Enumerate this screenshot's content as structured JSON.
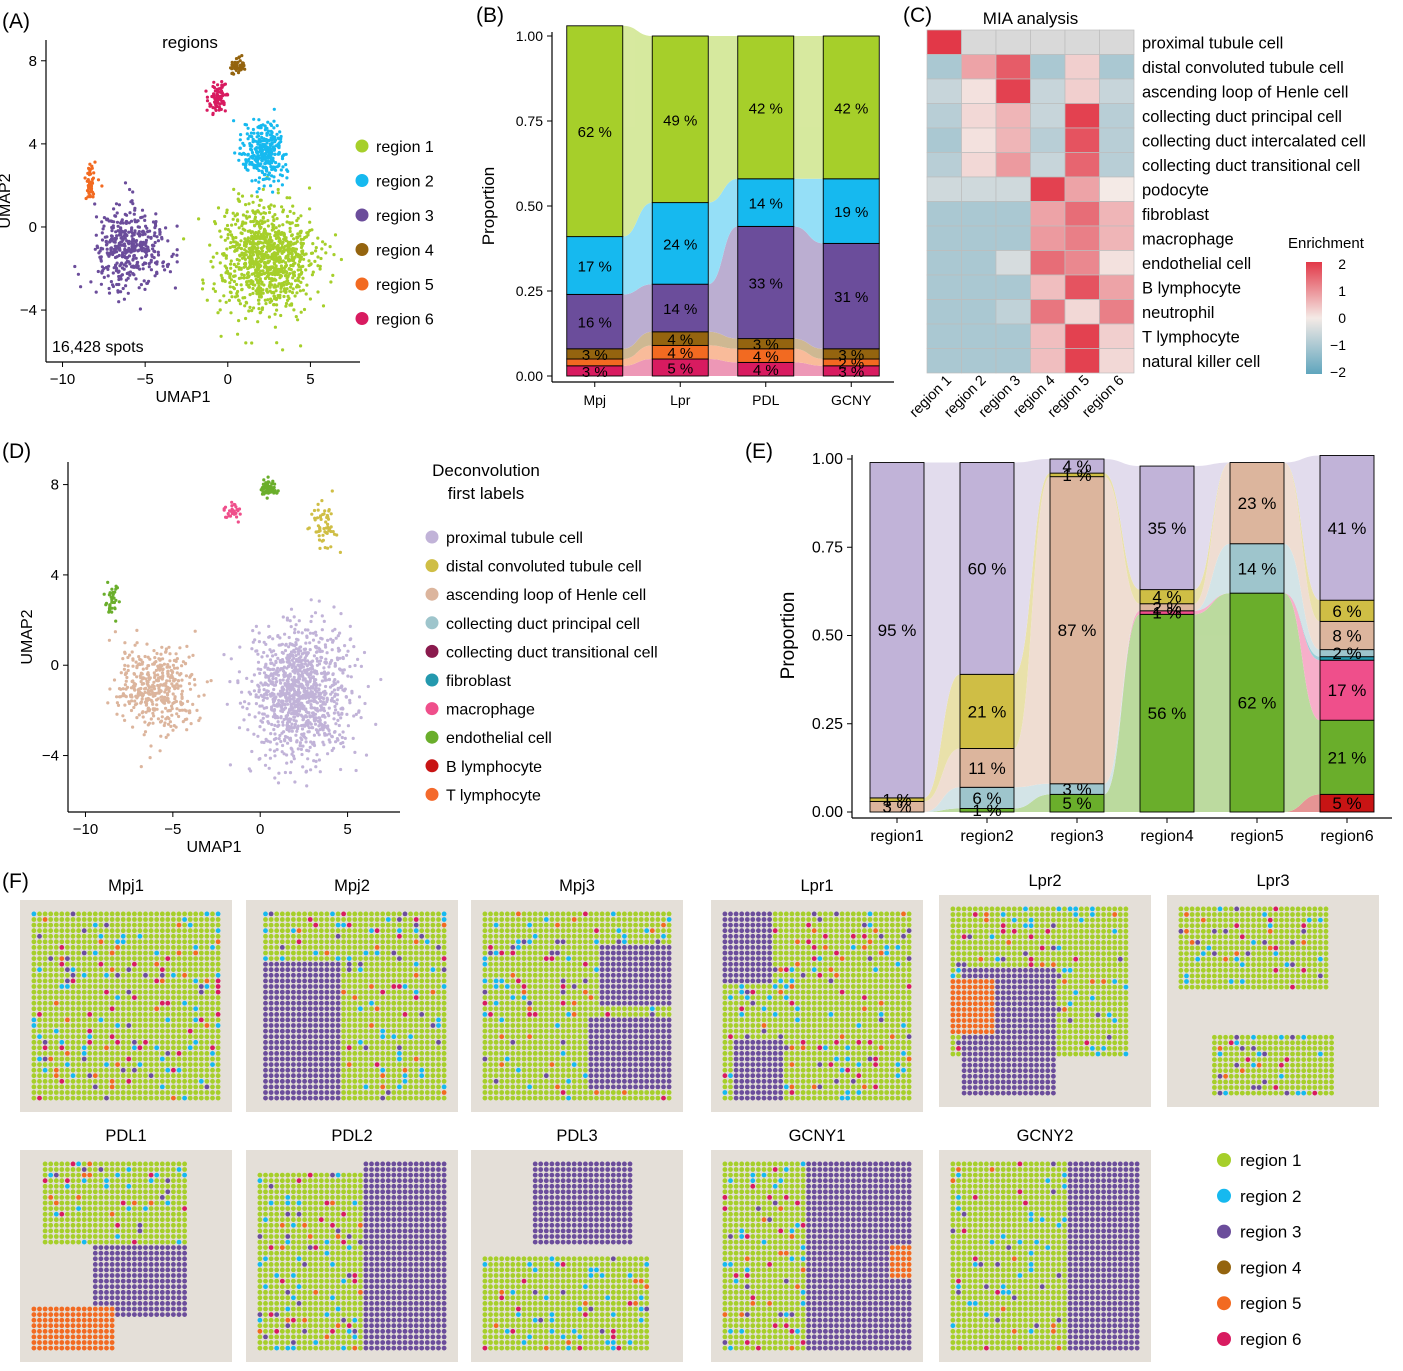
{
  "colors": {
    "region1": "#a6cf2a",
    "region2": "#16b9ef",
    "region3": "#6b4d9b",
    "region4": "#94640f",
    "region5": "#f26a21",
    "region6": "#d81b60",
    "proximal": "#c1b3d8",
    "distal": "#cfbe45",
    "loop": "#dcb59d",
    "cdprincipal": "#9ec5cc",
    "cdtransitional": "#8a1a4d",
    "fibroblast": "#2499ae",
    "macrophage": "#ef4f8b",
    "endothelial": "#6aae2b",
    "blymph": "#c81414",
    "tlymph": "#f46a2c",
    "tissue": "#e4dfd8"
  },
  "panel_labels": [
    "(A)",
    "(B)",
    "(C)",
    "(D)",
    "(E)",
    "(F)"
  ],
  "chart_data": [
    {
      "panel": "A",
      "type": "scatter",
      "title": "regions",
      "xlabel": "UMAP1",
      "ylabel": "UMAP2",
      "xlim": [
        -11,
        8
      ],
      "ylim": [
        -6.5,
        9
      ],
      "xticks": [
        -10,
        -5,
        0,
        5
      ],
      "yticks": [
        -4,
        0,
        4,
        8
      ],
      "annotation": "16,428 spots",
      "legend": [
        "region 1",
        "region 2",
        "region 3",
        "region 4",
        "region 5",
        "region 6"
      ],
      "clusters": [
        {
          "name": "region 1",
          "color": "region1",
          "cx": 2.3,
          "cy": -1.5,
          "sx": 2.6,
          "sy": 2.4,
          "n": 950
        },
        {
          "name": "region 2",
          "color": "region2",
          "cx": 2.2,
          "cy": 3.6,
          "sx": 1.2,
          "sy": 1.2,
          "n": 320
        },
        {
          "name": "region 3",
          "color": "region3",
          "cx": -6.0,
          "cy": -1.0,
          "sx": 2.0,
          "sy": 1.7,
          "n": 420
        },
        {
          "name": "region 4",
          "color": "region4",
          "cx": 0.6,
          "cy": 7.7,
          "sx": 0.35,
          "sy": 0.3,
          "n": 45
        },
        {
          "name": "region 5",
          "color": "region5",
          "cx": -8.3,
          "cy": 2.2,
          "sx": 0.35,
          "sy": 0.7,
          "n": 45
        },
        {
          "name": "region 6",
          "color": "region6",
          "cx": -0.6,
          "cy": 6.2,
          "sx": 0.55,
          "sy": 0.55,
          "n": 80
        }
      ]
    },
    {
      "panel": "B",
      "type": "bar",
      "ylabel": "Proportion",
      "categories": [
        "Mpj",
        "Lpr",
        "PDL",
        "GCNY"
      ],
      "yticks": [
        "0.00",
        "0.25",
        "0.50",
        "0.75",
        "1.00"
      ],
      "series": [
        {
          "name": "region 6",
          "color": "region6",
          "values": [
            0.03,
            0.05,
            0.04,
            0.03
          ],
          "labels": [
            "3 %",
            "5 %",
            "4 %",
            "3 %"
          ]
        },
        {
          "name": "region 5",
          "color": "region5",
          "values": [
            0.02,
            0.04,
            0.04,
            0.02
          ],
          "labels": [
            "",
            "4 %",
            "4 %",
            "2 %"
          ]
        },
        {
          "name": "region 4",
          "color": "region4",
          "values": [
            0.03,
            0.04,
            0.03,
            0.03
          ],
          "labels": [
            "3 %",
            "4 %",
            "3 %",
            "3 %"
          ]
        },
        {
          "name": "region 3",
          "color": "region3",
          "values": [
            0.16,
            0.14,
            0.33,
            0.31
          ],
          "labels": [
            "16 %",
            "14 %",
            "33 %",
            "31 %"
          ]
        },
        {
          "name": "region 2",
          "color": "region2",
          "values": [
            0.17,
            0.24,
            0.14,
            0.19
          ],
          "labels": [
            "17 %",
            "24 %",
            "14 %",
            "19 %"
          ]
        },
        {
          "name": "region 1",
          "color": "region1",
          "values": [
            0.62,
            0.49,
            0.42,
            0.42
          ],
          "labels": [
            "62 %",
            "49 %",
            "42 %",
            "42 %"
          ]
        }
      ]
    },
    {
      "panel": "C",
      "type": "heatmap",
      "title": "MIA analysis",
      "legend_title": "Enrichment",
      "legend_ticks": [
        "2",
        "1",
        "0",
        "−1",
        "−2"
      ],
      "columns": [
        "region 1",
        "region 2",
        "region 3",
        "region 4",
        "region 5",
        "region 6"
      ],
      "rows": [
        "proximal tubule cell",
        "distal convoluted tubule cell",
        "ascending loop of Henle cell",
        "collecting duct principal cell",
        "collecting duct intercalated cell",
        "collecting duct transitional cell",
        "podocyte",
        "fibroblast",
        "macrophage",
        "endothelial cell",
        "B lymphocyte",
        "neutrophil",
        "T lymphocyte",
        "natural killer cell"
      ],
      "values": [
        [
          2.0,
          0.0,
          0.0,
          0.0,
          0.0,
          0.0
        ],
        [
          -1.0,
          0.8,
          1.6,
          -1.0,
          0.3,
          -1.0
        ],
        [
          -0.6,
          0.1,
          1.9,
          -0.6,
          0.3,
          -0.6
        ],
        [
          -0.8,
          0.2,
          0.6,
          -0.6,
          1.9,
          -0.8
        ],
        [
          -1.0,
          0.1,
          0.6,
          -0.8,
          1.7,
          -0.8
        ],
        [
          -0.8,
          0.2,
          0.9,
          -0.6,
          1.5,
          -0.8
        ],
        [
          -0.5,
          -0.5,
          -0.5,
          1.9,
          0.8,
          0.0
        ],
        [
          -1.0,
          -1.0,
          -1.0,
          0.8,
          1.4,
          0.6
        ],
        [
          -1.0,
          -1.0,
          -1.0,
          0.9,
          1.2,
          0.6
        ],
        [
          -1.0,
          -1.0,
          -0.4,
          1.4,
          1.1,
          0.1
        ],
        [
          -1.0,
          -1.0,
          -1.0,
          0.5,
          1.7,
          0.8
        ],
        [
          -1.0,
          -1.0,
          -0.7,
          1.3,
          0.2,
          1.2
        ],
        [
          -1.0,
          -1.0,
          -1.0,
          0.5,
          1.9,
          0.3
        ],
        [
          -1.0,
          -1.0,
          -1.0,
          0.5,
          1.9,
          0.2
        ]
      ]
    },
    {
      "panel": "D",
      "type": "scatter",
      "title": "Deconvolution\nfirst labels",
      "xlabel": "UMAP1",
      "ylabel": "UMAP2",
      "xlim": [
        -11,
        8
      ],
      "ylim": [
        -6.5,
        9
      ],
      "xticks": [
        -10,
        -5,
        0,
        5
      ],
      "yticks": [
        -4,
        0,
        4,
        8
      ],
      "legend": [
        "proximal tubule cell",
        "distal convoluted tubule cell",
        "ascending loop of Henle cell",
        "collecting duct principal cell",
        "collecting duct transitional cell",
        "fibroblast",
        "macrophage",
        "endothelial cell",
        "B lymphocyte",
        "T lymphocyte"
      ],
      "legend_colors": [
        "proximal",
        "distal",
        "loop",
        "cdprincipal",
        "cdtransitional",
        "fibroblast",
        "macrophage",
        "endothelial",
        "blymph",
        "tlymph"
      ],
      "clusters": [
        {
          "name": "proximal tubule cell",
          "color": "proximal",
          "cx": 2.3,
          "cy": -1.2,
          "sx": 2.6,
          "sy": 2.6,
          "n": 1100
        },
        {
          "name": "ascending loop of Henle cell",
          "color": "loop",
          "cx": -6.0,
          "cy": -1.0,
          "sx": 2.0,
          "sy": 1.7,
          "n": 420
        },
        {
          "name": "distal convoluted tubule cell",
          "color": "distal",
          "cx": 3.6,
          "cy": 6.2,
          "sx": 0.6,
          "sy": 0.9,
          "n": 60
        },
        {
          "name": "endothelial cell",
          "color": "endothelial",
          "cx": 0.5,
          "cy": 7.8,
          "sx": 0.4,
          "sy": 0.35,
          "n": 60
        },
        {
          "name": "endothelial cell",
          "color": "endothelial",
          "cx": -8.5,
          "cy": 2.8,
          "sx": 0.35,
          "sy": 0.6,
          "n": 40
        },
        {
          "name": "macrophage",
          "color": "macrophage",
          "cx": -1.6,
          "cy": 6.8,
          "sx": 0.5,
          "sy": 0.4,
          "n": 30
        }
      ]
    },
    {
      "panel": "E",
      "type": "bar",
      "ylabel": "Proportion",
      "categories": [
        "region1",
        "region2",
        "region3",
        "region4",
        "region5",
        "region6"
      ],
      "yticks": [
        "0.00",
        "0.25",
        "0.50",
        "0.75",
        "1.00"
      ],
      "series": [
        {
          "name": "B lymphocyte",
          "color": "blymph",
          "values": [
            0.0,
            0.0,
            0.0,
            0.0,
            0.0,
            0.05
          ],
          "labels": [
            "",
            "",
            "",
            "",
            "",
            "5 %"
          ]
        },
        {
          "name": "endothelial cell",
          "color": "endothelial",
          "values": [
            0.0,
            0.01,
            0.05,
            0.56,
            0.62,
            0.21
          ],
          "labels": [
            "",
            "1 %",
            "5 %",
            "56 %",
            "62 %",
            "21 %"
          ]
        },
        {
          "name": "macrophage",
          "color": "macrophage",
          "values": [
            0.0,
            0.0,
            0.0,
            0.01,
            0.0,
            0.17
          ],
          "labels": [
            "",
            "",
            "",
            "1 %",
            "",
            "17 %"
          ]
        },
        {
          "name": "fibroblast",
          "color": "fibroblast",
          "values": [
            0.0,
            0.0,
            0.0,
            0.0,
            0.0,
            0.01
          ],
          "labels": [
            "",
            "",
            "",
            "",
            "",
            ""
          ]
        },
        {
          "name": "collecting duct principal cell",
          "color": "cdprincipal",
          "values": [
            0.0,
            0.06,
            0.03,
            0.0,
            0.14,
            0.02
          ],
          "labels": [
            "",
            "6 %",
            "3 %",
            "",
            "14 %",
            "2 %"
          ]
        },
        {
          "name": "ascending loop of Henle cell",
          "color": "loop",
          "values": [
            0.03,
            0.11,
            0.87,
            0.02,
            0.23,
            0.08
          ],
          "labels": [
            "3 %",
            "11 %",
            "87 %",
            "2 %",
            "23 %",
            "8 %"
          ]
        },
        {
          "name": "distal convoluted tubule cell",
          "color": "distal",
          "values": [
            0.01,
            0.21,
            0.01,
            0.04,
            0.0,
            0.06
          ],
          "labels": [
            "1 %",
            "21 %",
            "1 %",
            "4 %",
            "",
            "6 %"
          ]
        },
        {
          "name": "proximal tubule cell",
          "color": "proximal",
          "values": [
            0.95,
            0.6,
            0.04,
            0.35,
            0.0,
            0.41
          ],
          "labels": [
            "95 %",
            "60 %",
            "4 %",
            "35 %",
            "",
            "41 %"
          ]
        }
      ]
    },
    {
      "panel": "F",
      "type": "scatter",
      "samples": [
        "Mpj1",
        "Mpj2",
        "Mpj3",
        "Lpr1",
        "Lpr2",
        "Lpr3",
        "PDL1",
        "PDL2",
        "PDL3",
        "GCNY1",
        "GCNY2"
      ],
      "legend": [
        "region 1",
        "region 2",
        "region 3",
        "region 4",
        "region 5",
        "region 6"
      ]
    }
  ]
}
